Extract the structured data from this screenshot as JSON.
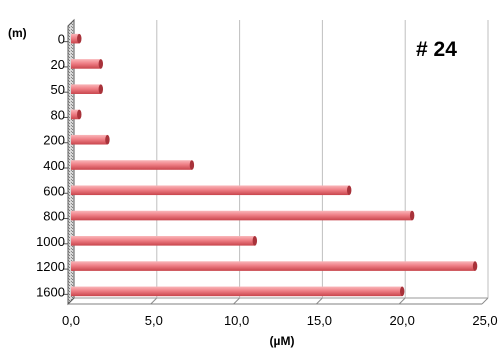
{
  "chart_data": {
    "type": "bar",
    "orientation": "horizontal",
    "annotation": "# 24",
    "xlabel": "(µM)",
    "ylabel": "(m)",
    "xlim": [
      0,
      25
    ],
    "x_ticks": [
      "0,0",
      "5,0",
      "10,0",
      "15,0",
      "20,0",
      "25,0"
    ],
    "grid": "vertical",
    "categories": [
      "0",
      "20",
      "50",
      "80",
      "200",
      "400",
      "600",
      "800",
      "1000",
      "1200",
      "1600"
    ],
    "values": [
      0.5,
      1.8,
      1.8,
      0.5,
      2.2,
      7.3,
      16.8,
      20.6,
      11.1,
      24.4,
      20.0
    ],
    "bar_color": "#f07f84",
    "bar_dark": "#a8323a"
  }
}
